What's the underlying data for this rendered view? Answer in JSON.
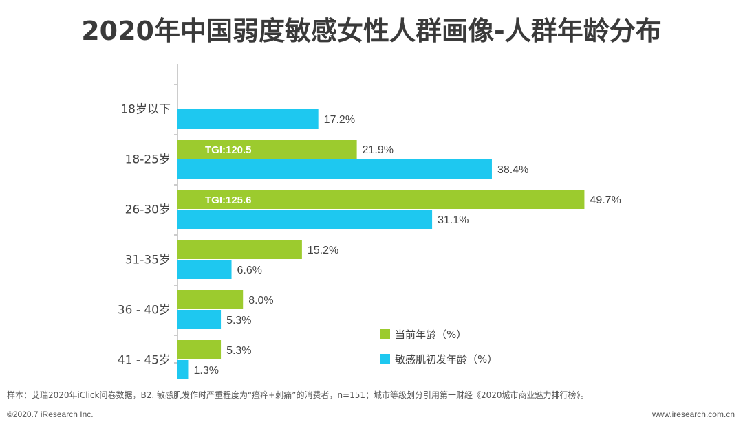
{
  "title": "2020年中国弱度敏感女性人群画像-人群年龄分布",
  "chart_data": {
    "type": "bar",
    "orientation": "horizontal",
    "categories": [
      "18岁以下",
      "18-25岁",
      "26-30岁",
      "31-35岁",
      "36 - 40岁",
      "41 - 45岁"
    ],
    "series": [
      {
        "name": "当前年龄（%）",
        "color": "#9ccb2e",
        "values": [
          null,
          21.9,
          49.7,
          15.2,
          8.0,
          5.3
        ]
      },
      {
        "name": "敏感肌初发年龄（%）",
        "color": "#1ec8f0",
        "values": [
          17.2,
          38.4,
          31.1,
          6.6,
          5.3,
          1.3
        ]
      }
    ],
    "value_labels": [
      [
        "",
        "21.9%",
        "49.7%",
        "15.2%",
        "8.0%",
        "5.3%"
      ],
      [
        "17.2%",
        "38.4%",
        "31.1%",
        "6.6%",
        "5.3%",
        "1.3%"
      ]
    ],
    "annotations": [
      {
        "category": "18-25岁",
        "series": 0,
        "text": "TGI:120.5"
      },
      {
        "category": "26-30岁",
        "series": 0,
        "text": "TGI:125.6"
      }
    ],
    "xlim": [
      0,
      50
    ],
    "legend_position": "bottom-right",
    "grid": false
  },
  "note": "样本：艾瑞2020年iClick问卷数据，B2. 敏感肌发作时严重程度为“瘙痒+刺痛”的消费者，n=151；城市等级划分引用第一财经《2020城市商业魅力排行榜》。",
  "copyright": "©2020.7 iResearch Inc.",
  "site": "www.iresearch.com.cn"
}
